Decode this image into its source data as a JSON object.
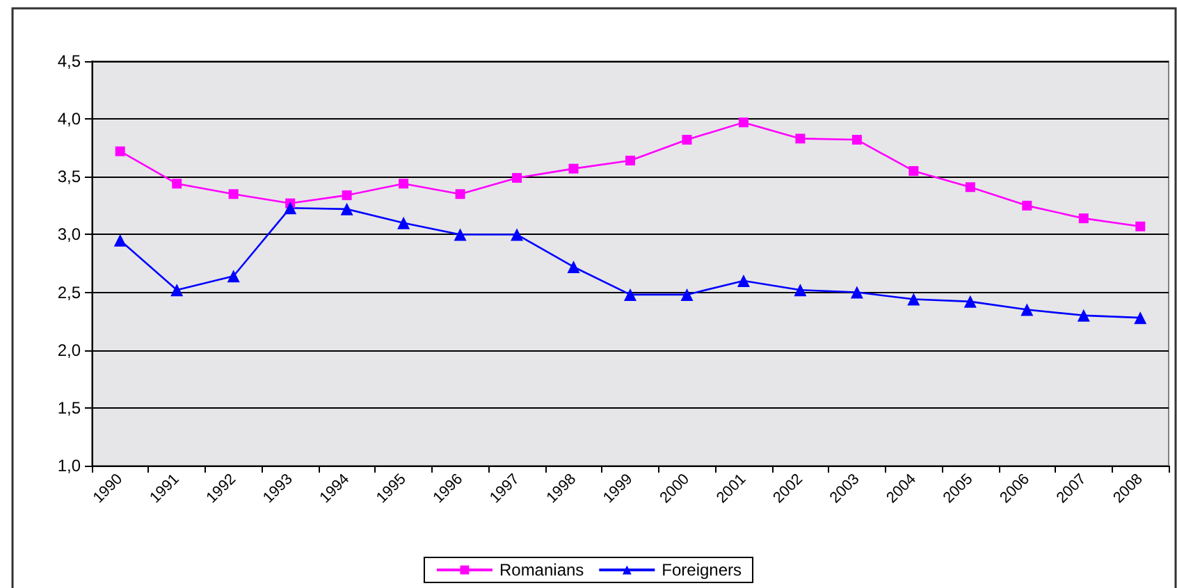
{
  "chart_data": {
    "type": "line",
    "categories": [
      "1990",
      "1991",
      "1992",
      "1993",
      "1994",
      "1995",
      "1996",
      "1997",
      "1998",
      "1999",
      "2000",
      "2001",
      "2002",
      "2003",
      "2004",
      "2005",
      "2006",
      "2007",
      "2008"
    ],
    "series": [
      {
        "name": "Romanians",
        "color": "#ff00ff",
        "marker": "square",
        "values": [
          3.72,
          3.44,
          3.35,
          3.27,
          3.34,
          3.44,
          3.35,
          3.49,
          3.57,
          3.64,
          3.82,
          3.97,
          3.83,
          3.82,
          3.55,
          3.41,
          3.25,
          3.14,
          3.07
        ]
      },
      {
        "name": "Foreigners",
        "color": "#0000ff",
        "marker": "triangle",
        "values": [
          2.95,
          2.52,
          2.64,
          3.23,
          3.22,
          3.1,
          3.0,
          3.0,
          2.72,
          2.48,
          2.48,
          2.6,
          2.52,
          2.5,
          2.44,
          2.42,
          2.35,
          2.3,
          2.28
        ]
      }
    ],
    "ylim": [
      1.0,
      4.5
    ],
    "yticks": [
      {
        "value": 1.0,
        "label": "1,0"
      },
      {
        "value": 1.5,
        "label": "1,5"
      },
      {
        "value": 2.0,
        "label": "2,0"
      },
      {
        "value": 2.5,
        "label": "2,5"
      },
      {
        "value": 3.0,
        "label": "3,0"
      },
      {
        "value": 3.5,
        "label": "3,5"
      },
      {
        "value": 4.0,
        "label": "4,0"
      },
      {
        "value": 4.5,
        "label": "4,5"
      }
    ],
    "grid": "y",
    "legend": "bottom",
    "line_style": "solid"
  }
}
